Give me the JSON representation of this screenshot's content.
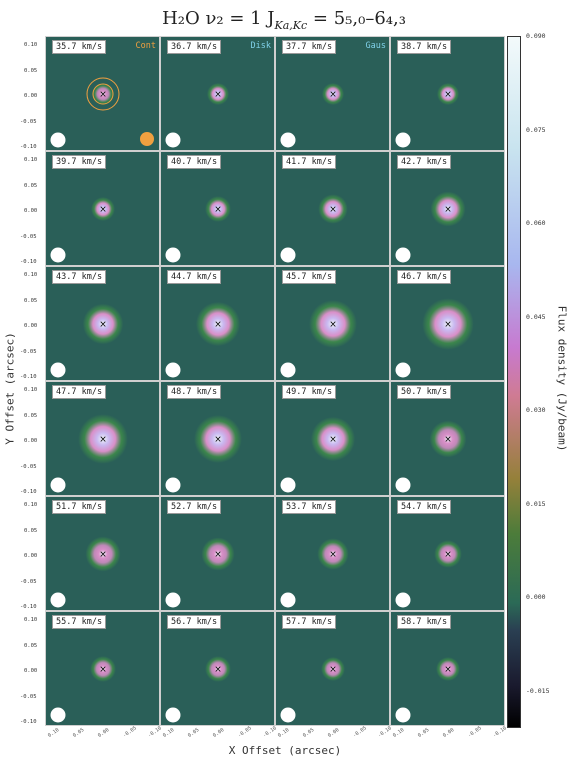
{
  "header": {
    "title_main": "H₂O  ν₂ = 1  J",
    "title_sub": "Ka,Kc",
    "title_tail": " = 5₅,₀–6₄,₃"
  },
  "colors": {
    "background": "#2a5f58",
    "peak": "#eef4f8",
    "pink": "#d98fc8",
    "green": "#3d8a4a",
    "tags": {
      "cont": "#f0a040",
      "disk": "#7fd0e8",
      "gaus": "#7fd0e8"
    },
    "beam": "#ffffff",
    "marker": "#000000"
  },
  "tags": {
    "cont": "Cont",
    "disk": "Disk",
    "gaus": "Gaus"
  },
  "chart_data": {
    "type": "heatmap",
    "title": "H2O ν2 = 1 J_{Ka,Kc} = 5_{5,0}–6_{4,3}",
    "xlabel": "X Offset (arcsec)",
    "ylabel": "Y Offset (arcsec)",
    "colorbar_label": "Flux density (Jy/beam)",
    "colorbar_range": [
      -0.021,
      0.09
    ],
    "colorbar_ticks": [
      "0.090",
      "0.075",
      "0.060",
      "0.045",
      "0.030",
      "0.015",
      "0.000",
      "-0.015"
    ],
    "y_ticks": [
      "0.10",
      "0.05",
      "0.00",
      "-0.05",
      "-0.10"
    ],
    "x_ticks": [
      "0.10",
      "0.05",
      "0.00",
      "-0.05",
      "-0.10"
    ],
    "xlim": [
      0.1,
      -0.1
    ],
    "ylim": [
      -0.1,
      0.1
    ],
    "velocity_unit": "km/s",
    "channels": [
      {
        "velocity": "35.7 km/s",
        "peak": 0.06,
        "size": 0.012
      },
      {
        "velocity": "36.7 km/s",
        "peak": 0.076,
        "size": 0.012
      },
      {
        "velocity": "37.7 km/s",
        "peak": 0.076,
        "size": 0.012
      },
      {
        "velocity": "38.7 km/s",
        "peak": 0.068,
        "size": 0.012
      },
      {
        "velocity": "39.7 km/s",
        "peak": 0.07,
        "size": 0.013
      },
      {
        "velocity": "40.7 km/s",
        "peak": 0.076,
        "size": 0.014
      },
      {
        "velocity": "41.7 km/s",
        "peak": 0.08,
        "size": 0.016
      },
      {
        "velocity": "42.7 km/s",
        "peak": 0.082,
        "size": 0.019
      },
      {
        "velocity": "43.7 km/s",
        "peak": 0.086,
        "size": 0.022
      },
      {
        "velocity": "44.7 km/s",
        "peak": 0.088,
        "size": 0.024
      },
      {
        "velocity": "45.7 km/s",
        "peak": 0.088,
        "size": 0.026
      },
      {
        "velocity": "46.7 km/s",
        "peak": 0.086,
        "size": 0.028
      },
      {
        "velocity": "47.7 km/s",
        "peak": 0.082,
        "size": 0.027
      },
      {
        "velocity": "48.7 km/s",
        "peak": 0.082,
        "size": 0.026
      },
      {
        "velocity": "49.7 km/s",
        "peak": 0.072,
        "size": 0.024
      },
      {
        "velocity": "50.7 km/s",
        "peak": 0.058,
        "size": 0.02
      },
      {
        "velocity": "51.7 km/s",
        "peak": 0.052,
        "size": 0.019
      },
      {
        "velocity": "52.7 km/s",
        "peak": 0.05,
        "size": 0.018
      },
      {
        "velocity": "53.7 km/s",
        "peak": 0.046,
        "size": 0.017
      },
      {
        "velocity": "54.7 km/s",
        "peak": 0.04,
        "size": 0.015
      },
      {
        "velocity": "55.7 km/s",
        "peak": 0.044,
        "size": 0.014
      },
      {
        "velocity": "56.7 km/s",
        "peak": 0.046,
        "size": 0.014
      },
      {
        "velocity": "57.7 km/s",
        "peak": 0.042,
        "size": 0.013
      },
      {
        "velocity": "58.7 km/s",
        "peak": 0.044,
        "size": 0.013
      }
    ]
  }
}
